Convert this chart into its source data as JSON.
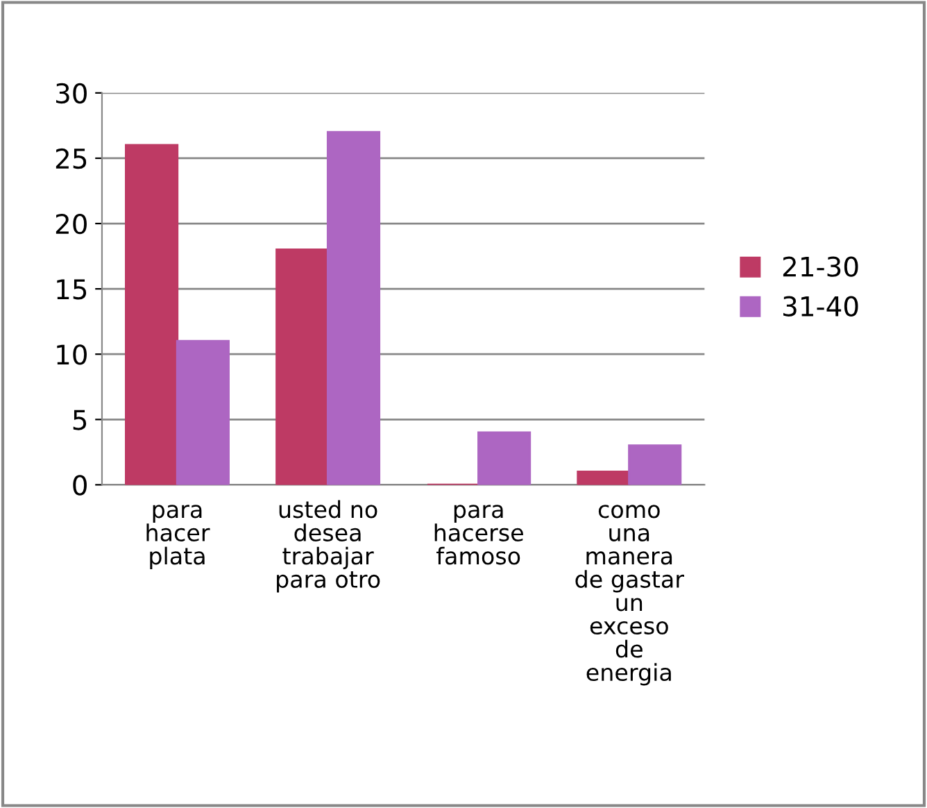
{
  "chart_data": {
    "type": "bar",
    "categories": [
      "para\nhacer\nplata",
      "usted no\ndesea\ntrabajar\npara otro",
      "para\nhacerse\nfamoso",
      "como\nuna\nmanera\nde gastar\nun\nexceso\nde\nenergia"
    ],
    "series": [
      {
        "name": "21-30",
        "color": "#be3a64",
        "values": [
          26,
          18,
          0,
          1
        ]
      },
      {
        "name": "31-40",
        "color": "#ad66c2",
        "values": [
          11,
          27,
          4,
          3
        ]
      }
    ],
    "ylim": [
      0,
      30
    ],
    "yticks": [
      0,
      5,
      10,
      15,
      20,
      25,
      30
    ],
    "grid": "y",
    "legend": "right"
  }
}
